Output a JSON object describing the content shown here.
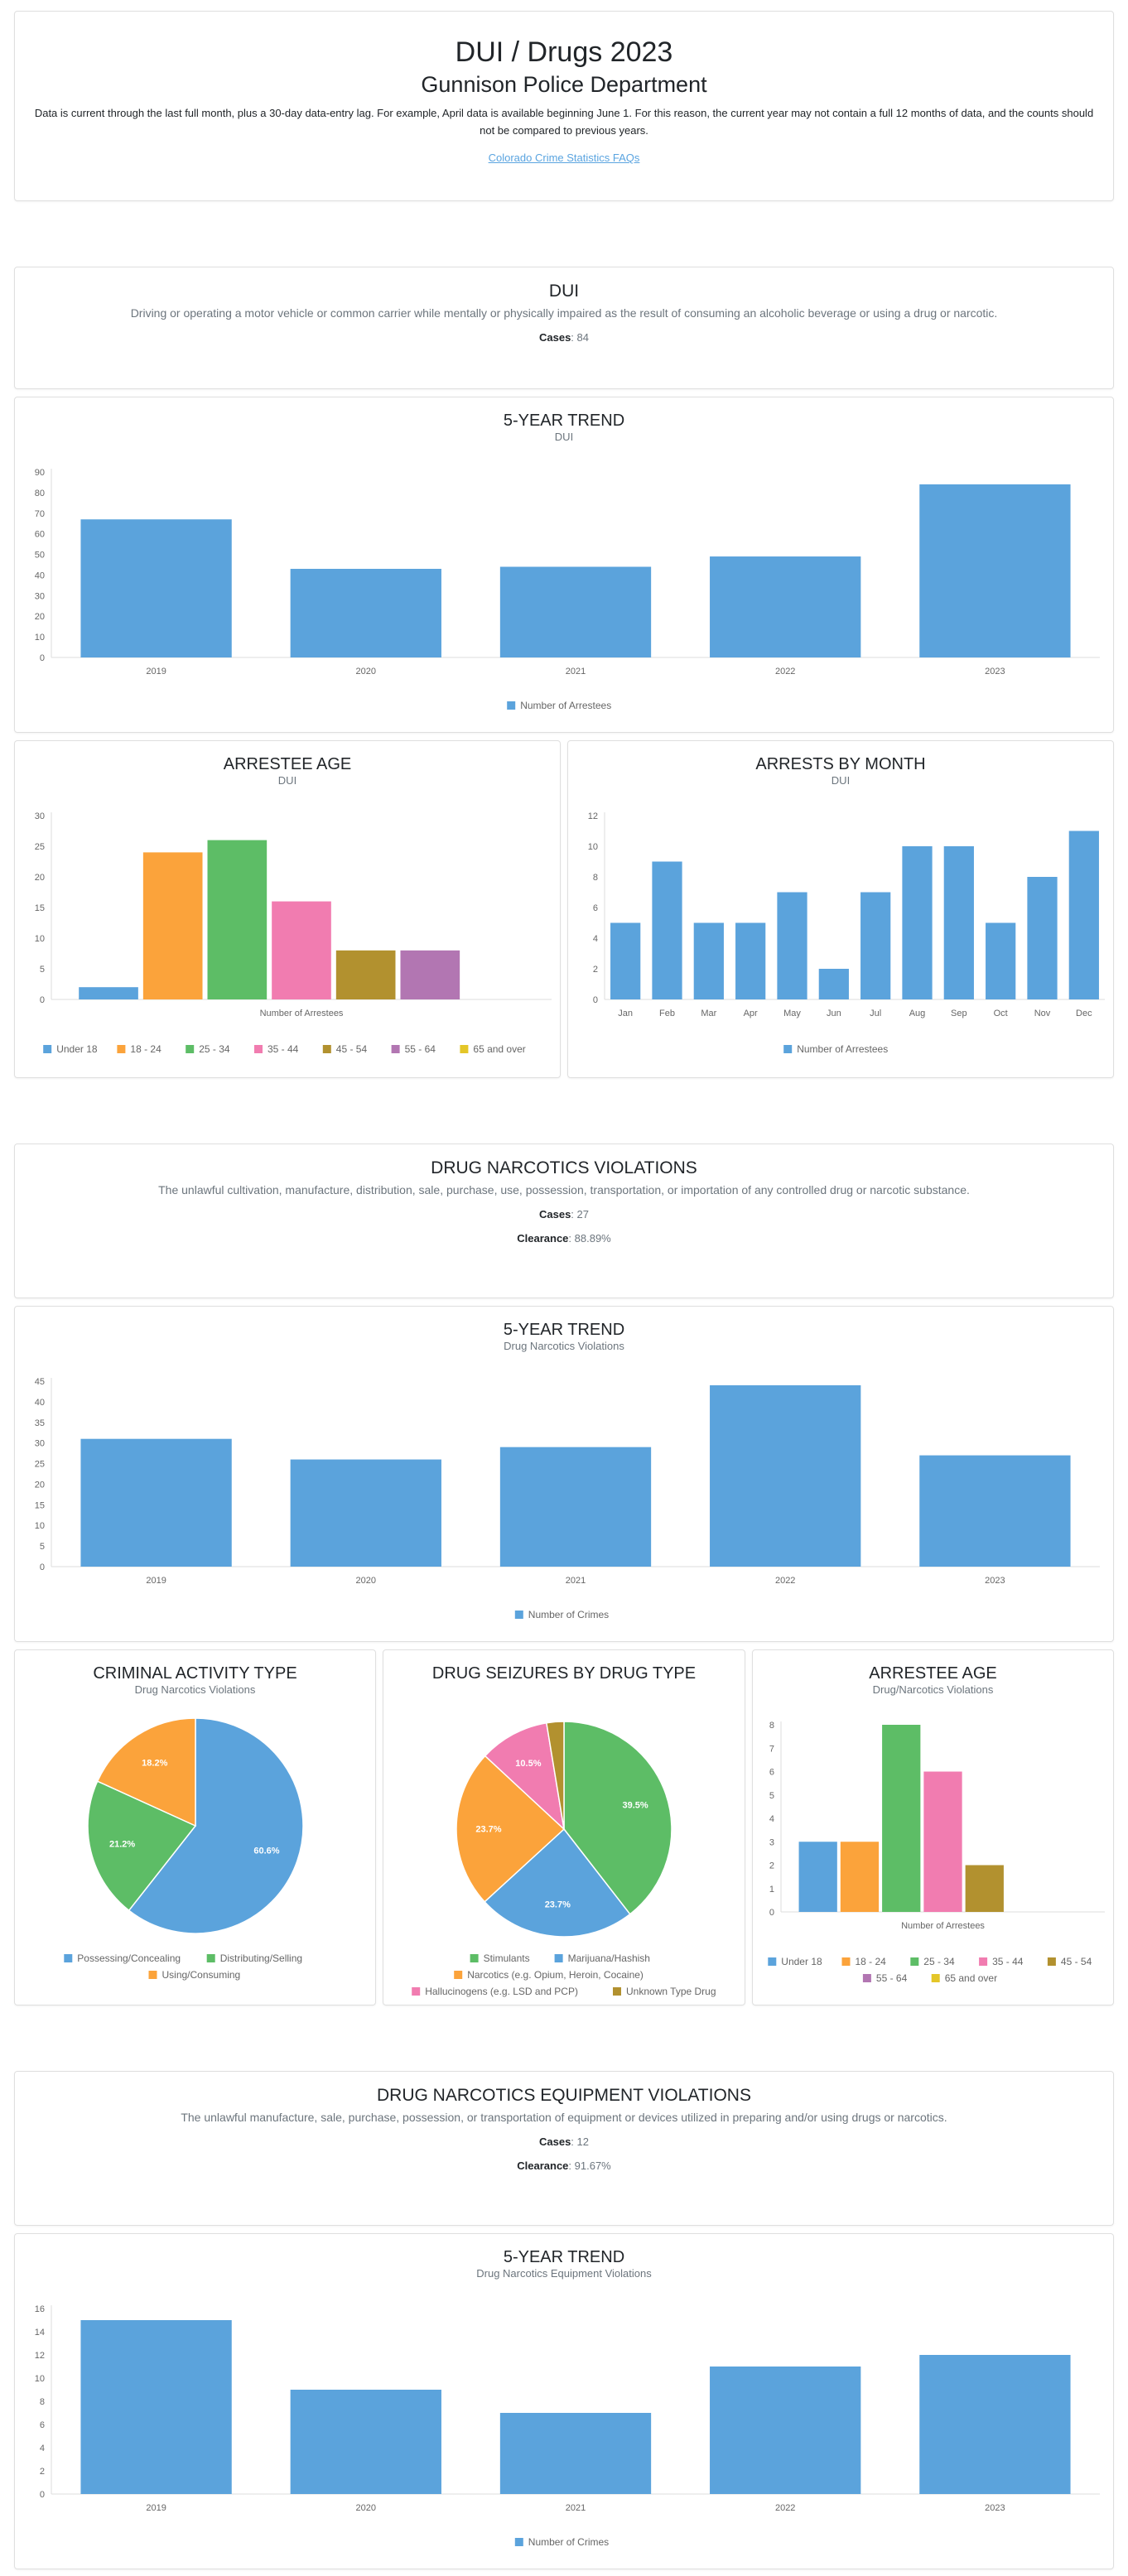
{
  "header": {
    "title": "DUI / Drugs 2023",
    "subtitle": "Gunnison Police Department",
    "note": "Data is current through the last full month, plus a 30-day data-entry lag. For example, April data is available beginning June 1. For this reason, the current year may not contain a full 12 months of data, and the counts should not be compared to previous years.",
    "link": "Colorado Crime Statistics FAQs"
  },
  "dui": {
    "title": "DUI",
    "description": "Driving or operating a motor vehicle or common carrier while mentally or physically impaired as the result of consuming an alcoholic beverage or using a drug or narcotic.",
    "cases_label": "Cases",
    "cases_value": "84"
  },
  "drug": {
    "title": "DRUG NARCOTICS VIOLATIONS",
    "description": "The unlawful cultivation, manufacture, distribution, sale, purchase, use, possession, transportation, or importation of any controlled drug or narcotic substance.",
    "cases_label": "Cases",
    "cases_value": "27",
    "clearance_label": "Clearance",
    "clearance_value": "88.89%"
  },
  "equip": {
    "title": "DRUG NARCOTICS EQUIPMENT VIOLATIONS",
    "description": "The unlawful manufacture, sale, purchase, possession, or transportation of equipment or devices utilized in preparing and/or using drugs or narcotics.",
    "cases_label": "Cases",
    "cases_value": "12",
    "clearance_label": "Clearance",
    "clearance_value": "91.67%"
  },
  "colors": {
    "blue": "#5ba3dc",
    "orange": "#fba33b",
    "green": "#5dbd66",
    "pink": "#f17cb0",
    "olive": "#b2912f",
    "purple": "#b276b2",
    "yellow": "#e4c628"
  },
  "chart_data": [
    {
      "id": "dui_trend",
      "type": "bar",
      "title": "5-YEAR TREND",
      "subtitle": "DUI",
      "categories": [
        "2019",
        "2020",
        "2021",
        "2022",
        "2023"
      ],
      "series": [
        {
          "name": "Number of Arrestees",
          "values": [
            67,
            43,
            44,
            49,
            84
          ]
        }
      ],
      "ylim": [
        0,
        90
      ],
      "yticks": [
        0,
        10,
        20,
        30,
        40,
        50,
        60,
        70,
        80,
        90
      ]
    },
    {
      "id": "dui_age",
      "type": "bar",
      "title": "ARRESTEE AGE",
      "subtitle": "DUI",
      "xlabel": "Number of Arrestees",
      "series": [
        {
          "name": "Under 18",
          "values": [
            2
          ]
        },
        {
          "name": "18 - 24",
          "values": [
            24
          ]
        },
        {
          "name": "25 - 34",
          "values": [
            26
          ]
        },
        {
          "name": "35 - 44",
          "values": [
            16
          ]
        },
        {
          "name": "45 - 54",
          "values": [
            8
          ]
        },
        {
          "name": "55 - 64",
          "values": [
            8
          ]
        },
        {
          "name": "65 and over",
          "values": [
            0
          ]
        }
      ],
      "ylim": [
        0,
        30
      ],
      "yticks": [
        0,
        5,
        10,
        15,
        20,
        25,
        30
      ]
    },
    {
      "id": "dui_month",
      "type": "bar",
      "title": "ARRESTS BY MONTH",
      "subtitle": "DUI",
      "categories": [
        "Jan",
        "Feb",
        "Mar",
        "Apr",
        "May",
        "Jun",
        "Jul",
        "Aug",
        "Sep",
        "Oct",
        "Nov",
        "Dec"
      ],
      "series": [
        {
          "name": "Number of Arrestees",
          "values": [
            5,
            9,
            5,
            5,
            7,
            2,
            7,
            10,
            10,
            5,
            8,
            11
          ]
        }
      ],
      "ylim": [
        0,
        12
      ],
      "yticks": [
        0,
        2,
        4,
        6,
        8,
        10,
        12
      ]
    },
    {
      "id": "drug_trend",
      "type": "bar",
      "title": "5-YEAR TREND",
      "subtitle": "Drug Narcotics Violations",
      "categories": [
        "2019",
        "2020",
        "2021",
        "2022",
        "2023"
      ],
      "series": [
        {
          "name": "Number of Crimes",
          "values": [
            31,
            26,
            29,
            44,
            27
          ]
        }
      ],
      "ylim": [
        0,
        45
      ],
      "yticks": [
        0,
        5,
        10,
        15,
        20,
        25,
        30,
        35,
        40,
        45
      ]
    },
    {
      "id": "drug_activity",
      "type": "pie",
      "title": "CRIMINAL ACTIVITY TYPE",
      "subtitle": "Drug Narcotics Violations",
      "slices": [
        {
          "name": "Possessing/Concealing",
          "value": 60.6,
          "label": "60.6%"
        },
        {
          "name": "Distributing/Selling",
          "value": 21.2,
          "label": "21.2%"
        },
        {
          "name": "Using/Consuming",
          "value": 18.2,
          "label": "18.2%"
        }
      ]
    },
    {
      "id": "drug_seizures",
      "type": "pie",
      "title": "DRUG SEIZURES BY DRUG TYPE",
      "subtitle": "",
      "slices": [
        {
          "name": "Stimulants",
          "value": 39.5,
          "label": "39.5%"
        },
        {
          "name": "Marijuana/Hashish",
          "value": 23.7,
          "label": "23.7%"
        },
        {
          "name": "Narcotics (e.g. Opium, Heroin, Cocaine)",
          "value": 23.7,
          "label": "23.7%"
        },
        {
          "name": "Hallucinogens (e.g. LSD and PCP)",
          "value": 10.5,
          "label": "10.5%"
        },
        {
          "name": "Unknown Type Drug",
          "value": 2.6,
          "label": ""
        }
      ]
    },
    {
      "id": "drug_age",
      "type": "bar",
      "title": "ARRESTEE AGE",
      "subtitle": "Drug/Narcotics Violations",
      "xlabel": "Number of Arrestees",
      "series": [
        {
          "name": "Under 18",
          "values": [
            3
          ]
        },
        {
          "name": "18 - 24",
          "values": [
            3
          ]
        },
        {
          "name": "25 - 34",
          "values": [
            8
          ]
        },
        {
          "name": "35 - 44",
          "values": [
            6
          ]
        },
        {
          "name": "45 - 54",
          "values": [
            2
          ]
        },
        {
          "name": "55 - 64",
          "values": [
            0
          ]
        },
        {
          "name": "65 and over",
          "values": [
            0
          ]
        }
      ],
      "ylim": [
        0,
        8
      ],
      "yticks": [
        0,
        1,
        2,
        3,
        4,
        5,
        6,
        7,
        8
      ]
    },
    {
      "id": "equip_trend",
      "type": "bar",
      "title": "5-YEAR TREND",
      "subtitle": "Drug Narcotics Equipment Violations",
      "categories": [
        "2019",
        "2020",
        "2021",
        "2022",
        "2023"
      ],
      "series": [
        {
          "name": "Number of Crimes",
          "values": [
            15,
            9,
            7,
            11,
            12
          ]
        }
      ],
      "ylim": [
        0,
        16
      ],
      "yticks": [
        0,
        2,
        4,
        6,
        8,
        10,
        12,
        14,
        16
      ]
    }
  ]
}
